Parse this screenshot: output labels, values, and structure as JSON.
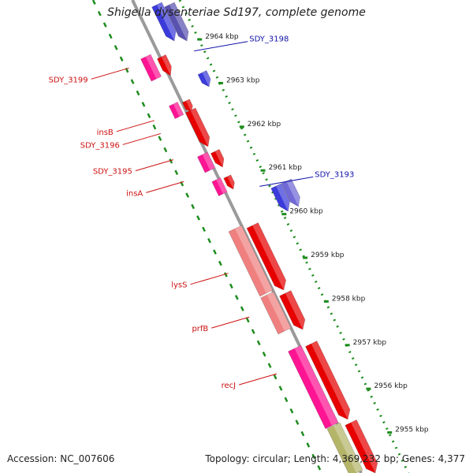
{
  "title": "Shigella dysenteriae Sd197, complete genome",
  "footer": {
    "accession": "Accession: NC_007606",
    "topology": "Topology: circular; Length: 4,369,232 bp; Genes: 4,377"
  },
  "kbp_ticks": [
    {
      "label": "2964 kbp",
      "kb": 2964
    },
    {
      "label": "2963 kbp",
      "kb": 2963
    },
    {
      "label": "2962 kbp",
      "kb": 2962
    },
    {
      "label": "2961 kbp",
      "kb": 2961
    },
    {
      "label": "2960 kbp",
      "kb": 2960
    },
    {
      "label": "2959 kbp",
      "kb": 2959
    },
    {
      "label": "2958 kbp",
      "kb": 2958
    },
    {
      "label": "2957 kbp",
      "kb": 2957
    },
    {
      "label": "2956 kbp",
      "kb": 2956
    },
    {
      "label": "2955 kbp",
      "kb": 2955
    }
  ],
  "gene_labels_left": [
    {
      "label": "SDY_3199",
      "kb": 2963.2
    },
    {
      "label": "insB",
      "kb": 2962.0
    },
    {
      "label": "SDY_3196",
      "kb": 2961.7
    },
    {
      "label": "SDY_3195",
      "kb": 2961.1
    },
    {
      "label": "insA",
      "kb": 2960.6
    },
    {
      "label": "lysS",
      "kb": 2958.5
    },
    {
      "label": "prfB",
      "kb": 2957.5
    },
    {
      "label": "recJ",
      "kb": 2956.2
    }
  ],
  "gene_labels_right": [
    {
      "label": "SDY_3198",
      "kb": 2963.7
    },
    {
      "label": "SDY_3193",
      "kb": 2960.6
    }
  ],
  "colors": {
    "backbone": "#7a7a7a",
    "ring_dots": "#1e8c1e",
    "cds": "#e60000",
    "gene": "#ff1493",
    "rna": "#3b3bdb",
    "label_left": "#cc1111",
    "label_right": "#1111aa"
  }
}
